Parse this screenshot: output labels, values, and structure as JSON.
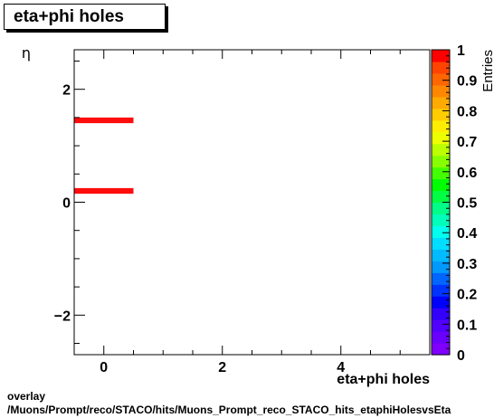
{
  "chart_data": {
    "type": "heatmap",
    "title": "eta+phi holes",
    "xlabel": "eta+phi holes",
    "ylabel": "η",
    "zlabel": "Entries",
    "xlim": [
      -0.5,
      5.5
    ],
    "ylim": [
      -2.7,
      2.7
    ],
    "zlim": [
      0,
      1
    ],
    "x_ticks": [
      "0",
      "2",
      "4"
    ],
    "y_ticks": [
      "−2",
      "0",
      "2"
    ],
    "z_ticks": [
      "0",
      "0.1",
      "0.2",
      "0.3",
      "0.4",
      "0.5",
      "0.6",
      "0.7",
      "0.8",
      "0.9",
      "1"
    ],
    "cells": [
      {
        "x0": -0.5,
        "x1": 0.5,
        "y0": 1.4,
        "y1": 1.5,
        "value": 1
      },
      {
        "x0": -0.5,
        "x1": 0.5,
        "y0": 0.15,
        "y1": 0.25,
        "value": 1
      }
    ],
    "cell_color": "#ff0d0d",
    "palette": [
      "#7f00ff",
      "#6a00ff",
      "#5200ff",
      "#3300ff",
      "#0000ff",
      "#0033ff",
      "#0066ff",
      "#0099ff",
      "#00bbff",
      "#00ddff",
      "#00ffee",
      "#00ffbb",
      "#00ff88",
      "#00ff44",
      "#00ff00",
      "#44ff00",
      "#88ff00",
      "#bbff00",
      "#eeff00",
      "#ffee00",
      "#ffcc00",
      "#ffaa00",
      "#ff8800",
      "#ff6600",
      "#ff4400",
      "#ff0000"
    ]
  },
  "footer": {
    "line1": "overlay",
    "line2": "/Muons/Prompt/reco/STACO/hits/Muons_Prompt_reco_STACO_hits_etaphiHolesvsEta"
  }
}
